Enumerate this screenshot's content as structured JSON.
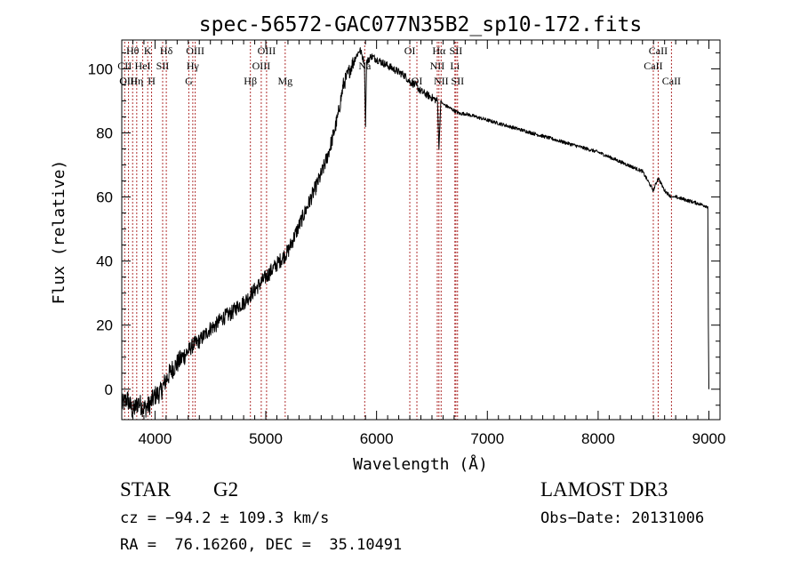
{
  "chart_data": {
    "type": "line",
    "title": "spec-56572-GAC077N35B2_sp10-172.fits",
    "xlabel": "Wavelength (Å)",
    "ylabel": "Flux (relative)",
    "xlim": [
      3700,
      9100
    ],
    "ylim": [
      -9.5,
      109
    ],
    "x_ticks": [
      4000,
      5000,
      6000,
      7000,
      8000,
      9000
    ],
    "y_ticks": [
      0,
      20,
      40,
      60,
      80,
      100
    ],
    "grid": false,
    "series": [
      {
        "name": "spectrum",
        "x": [
          3700,
          3750,
          3800,
          3850,
          3900,
          3950,
          4000,
          4050,
          4100,
          4150,
          4200,
          4250,
          4300,
          4350,
          4400,
          4450,
          4500,
          4550,
          4600,
          4650,
          4700,
          4750,
          4800,
          4850,
          4900,
          4950,
          5000,
          5050,
          5100,
          5150,
          5200,
          5250,
          5300,
          5350,
          5400,
          5450,
          5500,
          5550,
          5600,
          5650,
          5700,
          5750,
          5800,
          5850,
          5890,
          5900,
          5910,
          5950,
          6000,
          6050,
          6100,
          6150,
          6200,
          6250,
          6300,
          6350,
          6400,
          6450,
          6500,
          6550,
          6563,
          6580,
          6600,
          6650,
          6700,
          6750,
          6800,
          6900,
          7000,
          7200,
          7400,
          7600,
          7800,
          8000,
          8200,
          8400,
          8498,
          8542,
          8600,
          8662,
          8700,
          8800,
          8900,
          8990,
          8995,
          9000
        ],
        "y": [
          -5,
          -3,
          -7,
          -4,
          -6,
          -5,
          -2,
          -1,
          3,
          6,
          8,
          10,
          12,
          14,
          15,
          17,
          19,
          20,
          22,
          23,
          24,
          26,
          27,
          29,
          31,
          33,
          35,
          37,
          39,
          41,
          43,
          47,
          51,
          55,
          59,
          63,
          67,
          72,
          78,
          85,
          95,
          99,
          103,
          106,
          102,
          82,
          102,
          104,
          103,
          102,
          101,
          100,
          99,
          98,
          96,
          95,
          93,
          92,
          91,
          90,
          75,
          90,
          89,
          88,
          87,
          86,
          86,
          85,
          84,
          82,
          80,
          78,
          76,
          74,
          71,
          68,
          62,
          66,
          62,
          60,
          60,
          59,
          58,
          57,
          20,
          0
        ]
      }
    ],
    "line_markers": [
      {
        "label": "Hθ",
        "wl": 3798,
        "row": 1
      },
      {
        "label": "CII",
        "wl": 3726,
        "row": 2
      },
      {
        "label": "OIII",
        "wl": 3761,
        "row": 3
      },
      {
        "label": "Hη",
        "wl": 3835,
        "row": 3
      },
      {
        "label": "K",
        "wl": 3934,
        "row": 1
      },
      {
        "label": "HeI",
        "wl": 3889,
        "row": 2
      },
      {
        "label": "H",
        "wl": 3969,
        "row": 3
      },
      {
        "label": "SII",
        "wl": 4069,
        "row": 2
      },
      {
        "label": "Hδ",
        "wl": 4102,
        "row": 1
      },
      {
        "label": "OIII",
        "wl": 4363,
        "row": 1
      },
      {
        "label": "Hγ",
        "wl": 4341,
        "row": 2
      },
      {
        "label": "G",
        "wl": 4305,
        "row": 3
      },
      {
        "label": "Hβ",
        "wl": 4861,
        "row": 3
      },
      {
        "label": "OIII",
        "wl": 4959,
        "row": 2
      },
      {
        "label": "OIII",
        "wl": 5007,
        "row": 1
      },
      {
        "label": "Mg",
        "wl": 5175,
        "row": 3
      },
      {
        "label": "Na",
        "wl": 5893,
        "row": 2
      },
      {
        "label": "OI",
        "wl": 6300,
        "row": 1
      },
      {
        "label": "OI",
        "wl": 6364,
        "row": 3
      },
      {
        "label": "Hα",
        "wl": 6563,
        "row": 1
      },
      {
        "label": "NII",
        "wl": 6548,
        "row": 2
      },
      {
        "label": "NII",
        "wl": 6583,
        "row": 3
      },
      {
        "label": "SII",
        "wl": 6716,
        "row": 1
      },
      {
        "label": "Li",
        "wl": 6707,
        "row": 2
      },
      {
        "label": "SII",
        "wl": 6731,
        "row": 3
      },
      {
        "label": "CaII",
        "wl": 8542,
        "row": 1
      },
      {
        "label": "CaII",
        "wl": 8498,
        "row": 2
      },
      {
        "label": "CaII",
        "wl": 8662,
        "row": 3
      }
    ]
  },
  "info": {
    "object_type": "STAR",
    "subclass": "G2",
    "survey": "LAMOST DR3",
    "cz": "cz = −94.2 ± 109.3 km/s",
    "obs_date": "Obs−Date: 20131006",
    "coords": "RA =  76.16260, DEC =  35.10491"
  },
  "colors": {
    "spectrum": "#000000",
    "marker": "#b03030",
    "axis": "#000000"
  }
}
